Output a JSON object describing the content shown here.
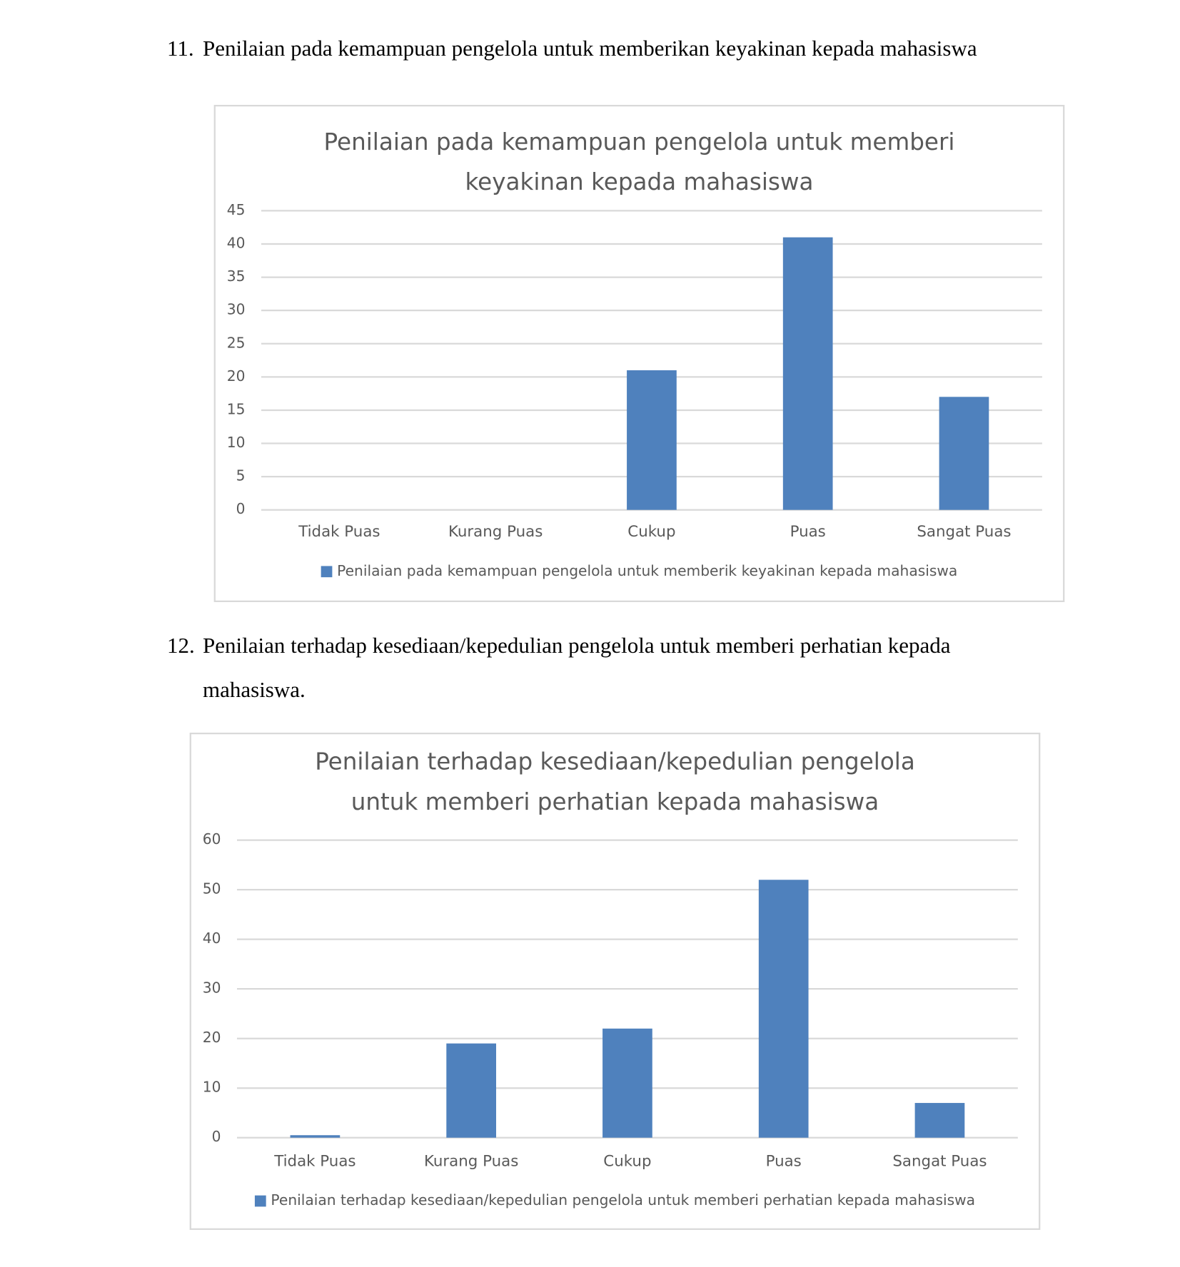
{
  "headings": [
    {
      "number": "11.",
      "text": "Penilaian pada kemampuan pengelola untuk memberikan keyakinan kepada mahasiswa"
    },
    {
      "number": "12.",
      "text": "Penilaian terhadap kesediaan/kepedulian pengelola untuk memberi perhatian kepada mahasiswa."
    }
  ],
  "chart_data": [
    {
      "type": "bar",
      "title": [
        "Penilaian pada kemampuan pengelola untuk memberi",
        "keyakinan kepada mahasiswa"
      ],
      "categories": [
        "Tidak Puas",
        "Kurang Puas",
        "Cukup",
        "Puas",
        "Sangat Puas"
      ],
      "series": [
        {
          "name": "Penilaian pada kemampuan pengelola untuk memberik keyakinan kepada mahasiswa",
          "color": "#4f81bd",
          "values": [
            0,
            0,
            21,
            41,
            17
          ]
        }
      ],
      "ylim": [
        0,
        45
      ],
      "yticks": [
        0,
        5,
        10,
        15,
        20,
        25,
        30,
        35,
        40,
        45
      ],
      "grid": true,
      "legend": "bottom"
    },
    {
      "type": "bar",
      "title": [
        "Penilaian terhadap kesediaan/kepedulian pengelola",
        "untuk memberi perhatian kepada mahasiswa"
      ],
      "categories": [
        "Tidak Puas",
        "Kurang Puas",
        "Cukup",
        "Puas",
        "Sangat Puas"
      ],
      "series": [
        {
          "name": "Penilaian terhadap kesediaan/kepedulian pengelola untuk memberi perhatian kepada mahasiswa",
          "color": "#4f81bd",
          "values": [
            0.5,
            19,
            22,
            52,
            7
          ]
        }
      ],
      "ylim": [
        0,
        60
      ],
      "yticks": [
        0,
        10,
        20,
        30,
        40,
        50,
        60
      ],
      "grid": true,
      "legend": "bottom"
    }
  ]
}
